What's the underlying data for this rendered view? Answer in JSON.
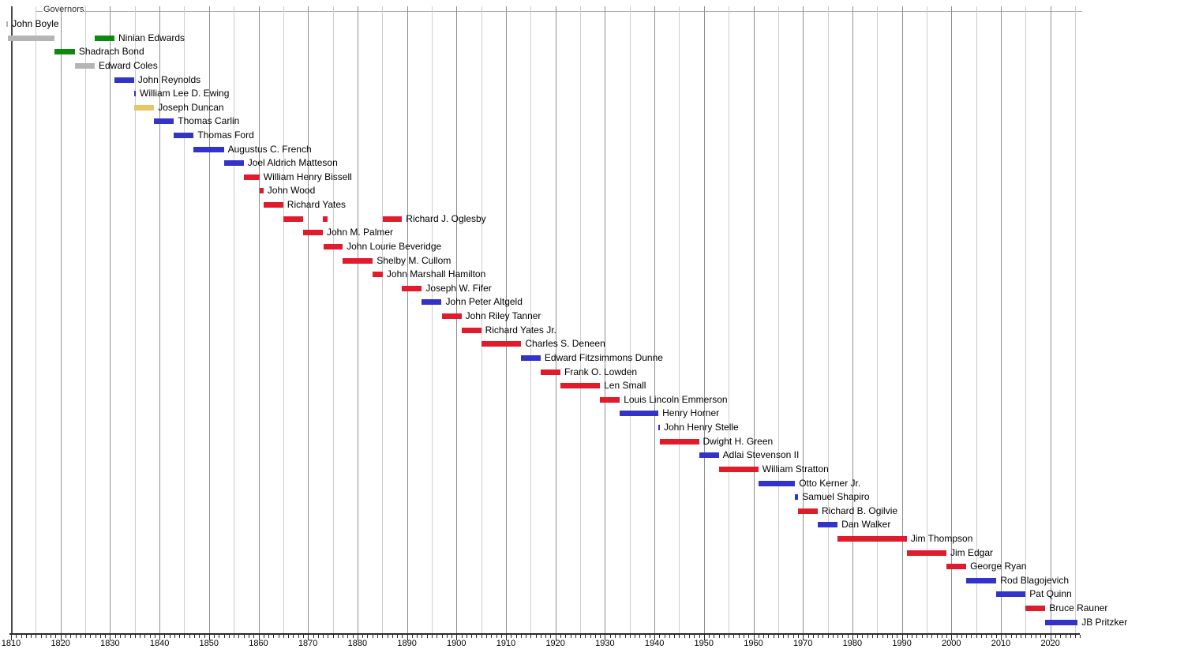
{
  "chart_data": {
    "type": "timeline",
    "title": "Governors",
    "background": "#ffffff",
    "x_axis": {
      "start_year": 1809,
      "end_year": 2026,
      "minor_tick_interval_years": 1,
      "gridline_interval_years": 5,
      "decade_tick_labels": [
        "1810",
        "1820",
        "1830",
        "1840",
        "1850",
        "1860",
        "1870",
        "1880",
        "1890",
        "1900",
        "1910",
        "1920",
        "1930",
        "1940",
        "1950",
        "1960",
        "1970",
        "1980",
        "1990",
        "2000",
        "2010",
        "2020"
      ]
    },
    "colors": {
      "gray": "#b5b5b5",
      "green": "#0b8a0b",
      "blue": "#3333cc",
      "yellow": "#e8c566",
      "red": "#e11a2c",
      "grid_minor": "#cdcdcd",
      "grid_decade": "#8f8f8f",
      "plot_border": "#4a4a4a",
      "axis": "#2a2a2a",
      "legend_line": "#aaaaaa",
      "text": "#000000"
    },
    "governors": [
      {
        "name": "John Boyle",
        "bars": [
          {
            "color": "gray",
            "start": 1809.0,
            "end": 1809.4
          }
        ]
      },
      {
        "name": "Ninian Edwards",
        "bars": [
          {
            "color": "gray",
            "start": 1809.4,
            "end": 1818.8
          },
          {
            "color": "green",
            "start": 1826.9,
            "end": 1830.9
          }
        ]
      },
      {
        "name": "Shadrach Bond",
        "bars": [
          {
            "color": "green",
            "start": 1818.8,
            "end": 1822.9
          }
        ]
      },
      {
        "name": "Edward Coles",
        "bars": [
          {
            "color": "gray",
            "start": 1822.9,
            "end": 1826.9
          }
        ]
      },
      {
        "name": "John Reynolds",
        "bars": [
          {
            "color": "blue",
            "start": 1830.9,
            "end": 1834.85
          }
        ]
      },
      {
        "name": "William Lee D. Ewing",
        "bars": [
          {
            "color": "blue",
            "start": 1834.85,
            "end": 1835.2
          }
        ]
      },
      {
        "name": "Joseph Duncan",
        "bars": [
          {
            "color": "yellow",
            "start": 1834.9,
            "end": 1838.9
          }
        ]
      },
      {
        "name": "Thomas Carlin",
        "bars": [
          {
            "color": "blue",
            "start": 1838.9,
            "end": 1842.9
          }
        ]
      },
      {
        "name": "Thomas Ford",
        "bars": [
          {
            "color": "blue",
            "start": 1842.9,
            "end": 1846.9
          }
        ]
      },
      {
        "name": "Augustus C. French",
        "bars": [
          {
            "color": "blue",
            "start": 1846.9,
            "end": 1853.0
          }
        ]
      },
      {
        "name": "Joel Aldrich Matteson",
        "bars": [
          {
            "color": "blue",
            "start": 1853.0,
            "end": 1857.0
          }
        ]
      },
      {
        "name": "William Henry Bissell",
        "bars": [
          {
            "color": "red",
            "start": 1857.0,
            "end": 1860.2
          }
        ]
      },
      {
        "name": "John Wood",
        "bars": [
          {
            "color": "red",
            "start": 1860.2,
            "end": 1861.0
          }
        ]
      },
      {
        "name": "Richard Yates",
        "bars": [
          {
            "color": "red",
            "start": 1861.0,
            "end": 1865.0
          }
        ]
      },
      {
        "name": "Richard J. Oglesby",
        "bars": [
          {
            "color": "red",
            "start": 1865.0,
            "end": 1869.0
          },
          {
            "color": "red",
            "start": 1873.0,
            "end": 1874.0
          },
          {
            "color": "red",
            "start": 1885.1,
            "end": 1889.0
          }
        ]
      },
      {
        "name": "John M. Palmer",
        "bars": [
          {
            "color": "red",
            "start": 1869.0,
            "end": 1873.0
          }
        ]
      },
      {
        "name": "John Lourie Beveridge",
        "bars": [
          {
            "color": "red",
            "start": 1873.1,
            "end": 1877.0
          }
        ]
      },
      {
        "name": "Shelby M. Cullom",
        "bars": [
          {
            "color": "red",
            "start": 1877.0,
            "end": 1883.1
          }
        ]
      },
      {
        "name": "John Marshall Hamilton",
        "bars": [
          {
            "color": "red",
            "start": 1883.1,
            "end": 1885.1
          }
        ]
      },
      {
        "name": "Joseph W. Fifer",
        "bars": [
          {
            "color": "red",
            "start": 1889.0,
            "end": 1893.0
          }
        ]
      },
      {
        "name": "John Peter Altgeld",
        "bars": [
          {
            "color": "blue",
            "start": 1893.0,
            "end": 1897.0
          }
        ]
      },
      {
        "name": "John Riley Tanner",
        "bars": [
          {
            "color": "red",
            "start": 1897.0,
            "end": 1901.0
          }
        ]
      },
      {
        "name": "Richard Yates Jr.",
        "bars": [
          {
            "color": "red",
            "start": 1901.0,
            "end": 1905.0
          }
        ]
      },
      {
        "name": "Charles S. Deneen",
        "bars": [
          {
            "color": "red",
            "start": 1905.0,
            "end": 1913.1
          }
        ]
      },
      {
        "name": "Edward Fitzsimmons Dunne",
        "bars": [
          {
            "color": "blue",
            "start": 1913.1,
            "end": 1917.0
          }
        ]
      },
      {
        "name": "Frank O. Lowden",
        "bars": [
          {
            "color": "red",
            "start": 1917.0,
            "end": 1921.0
          }
        ]
      },
      {
        "name": "Len Small",
        "bars": [
          {
            "color": "red",
            "start": 1921.0,
            "end": 1929.0
          }
        ]
      },
      {
        "name": "Louis Lincoln Emmerson",
        "bars": [
          {
            "color": "red",
            "start": 1929.0,
            "end": 1933.0
          }
        ]
      },
      {
        "name": "Henry Horner",
        "bars": [
          {
            "color": "blue",
            "start": 1933.0,
            "end": 1940.8
          }
        ]
      },
      {
        "name": "John Henry Stelle",
        "bars": [
          {
            "color": "blue",
            "start": 1940.8,
            "end": 1941.1
          }
        ]
      },
      {
        "name": "Dwight H. Green",
        "bars": [
          {
            "color": "red",
            "start": 1941.1,
            "end": 1949.0
          }
        ]
      },
      {
        "name": "Adlai Stevenson II",
        "bars": [
          {
            "color": "blue",
            "start": 1949.0,
            "end": 1953.0
          }
        ]
      },
      {
        "name": "William Stratton",
        "bars": [
          {
            "color": "red",
            "start": 1953.0,
            "end": 1961.0
          }
        ]
      },
      {
        "name": "Otto Kerner Jr.",
        "bars": [
          {
            "color": "blue",
            "start": 1961.0,
            "end": 1968.4
          }
        ]
      },
      {
        "name": "Samuel Shapiro",
        "bars": [
          {
            "color": "blue",
            "start": 1968.4,
            "end": 1969.05
          }
        ]
      },
      {
        "name": "Richard B. Ogilvie",
        "bars": [
          {
            "color": "red",
            "start": 1969.05,
            "end": 1973.0
          }
        ]
      },
      {
        "name": "Dan Walker",
        "bars": [
          {
            "color": "blue",
            "start": 1973.0,
            "end": 1977.0
          }
        ]
      },
      {
        "name": "Jim Thompson",
        "bars": [
          {
            "color": "red",
            "start": 1977.0,
            "end": 1991.0
          }
        ]
      },
      {
        "name": "Jim Edgar",
        "bars": [
          {
            "color": "red",
            "start": 1991.0,
            "end": 1999.0
          }
        ]
      },
      {
        "name": "George Ryan",
        "bars": [
          {
            "color": "red",
            "start": 1999.0,
            "end": 2003.0
          }
        ]
      },
      {
        "name": "Rod Blagojevich",
        "bars": [
          {
            "color": "blue",
            "start": 2003.0,
            "end": 2009.1
          }
        ]
      },
      {
        "name": "Pat Quinn",
        "bars": [
          {
            "color": "blue",
            "start": 2009.1,
            "end": 2015.0
          }
        ]
      },
      {
        "name": "Bruce Rauner",
        "bars": [
          {
            "color": "red",
            "start": 2015.0,
            "end": 2019.0
          }
        ]
      },
      {
        "name": "JB Pritzker",
        "bars": [
          {
            "color": "blue",
            "start": 2019.0,
            "end": 2025.5
          }
        ]
      }
    ]
  }
}
